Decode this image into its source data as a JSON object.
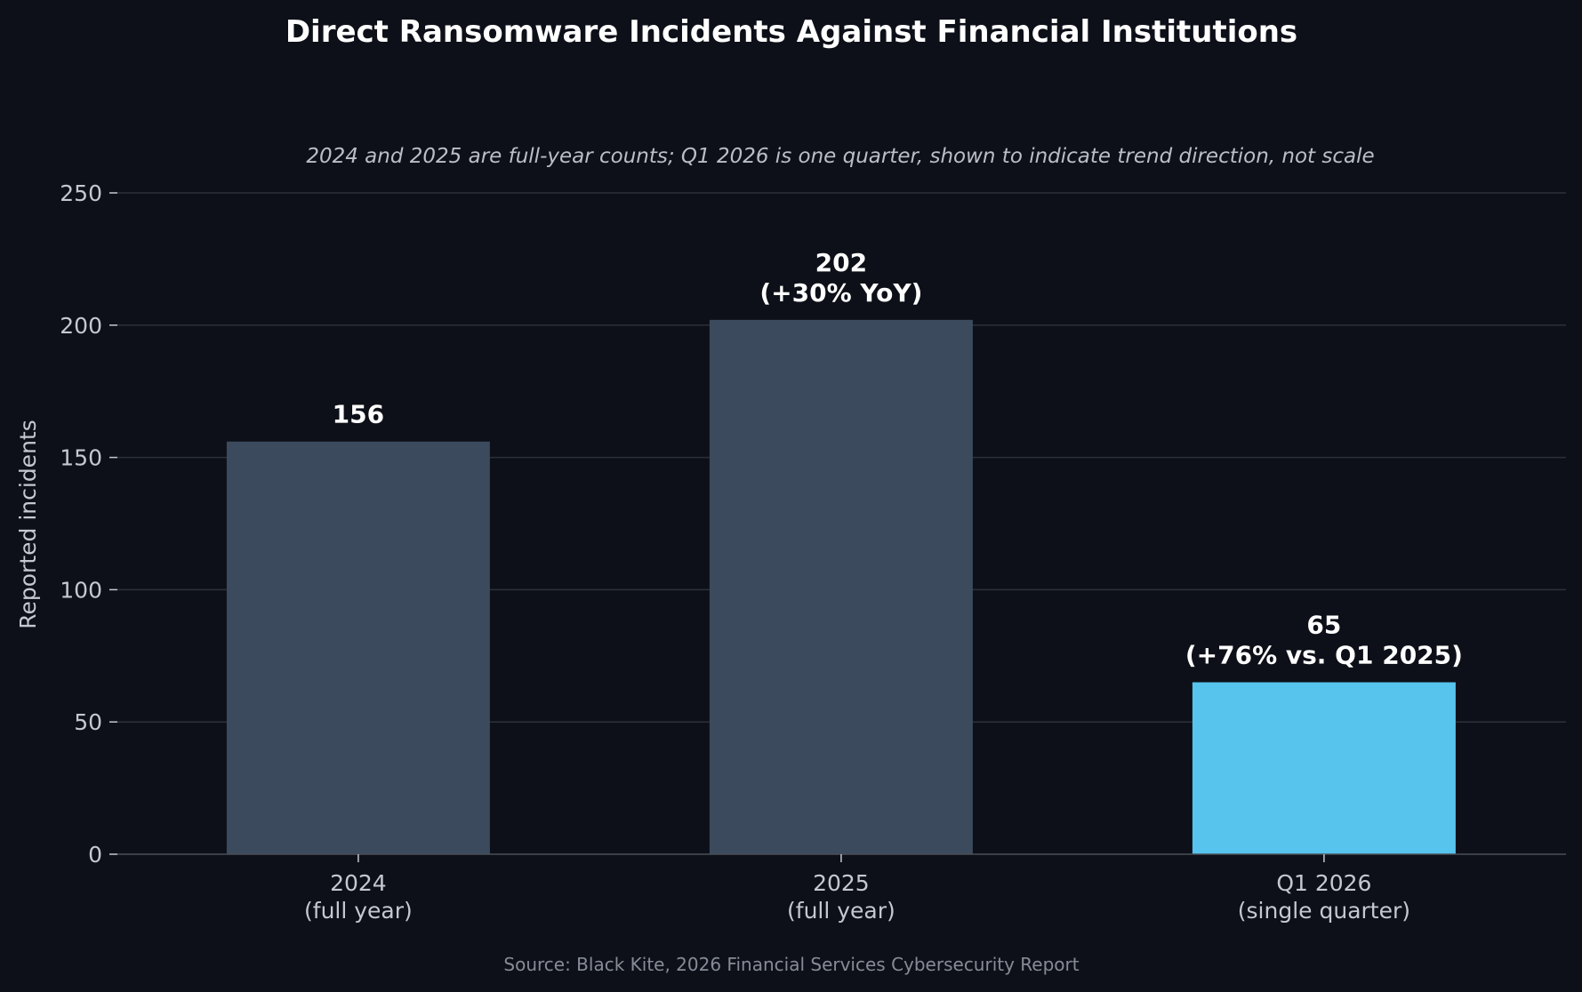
{
  "chart_data": {
    "type": "bar",
    "title": "Direct Ransomware Incidents Against Financial Institutions",
    "subtitle": "2024 and 2025 are full-year counts; Q1 2026 is one quarter, shown to indicate trend direction, not scale",
    "ylabel": "Reported incidents",
    "xlabel": "",
    "ylim": [
      0,
      250
    ],
    "yticks": [
      0,
      50,
      100,
      150,
      200,
      250
    ],
    "grid": true,
    "categories": [
      [
        "2024",
        "(full year)"
      ],
      [
        "2025",
        "(full year)"
      ],
      [
        "Q1 2026",
        "(single quarter)"
      ]
    ],
    "values": [
      156,
      202,
      65
    ],
    "data_labels": [
      [
        "156"
      ],
      [
        "202",
        "(+30% YoY)"
      ],
      [
        "65",
        "(+76% vs. Q1 2025)"
      ]
    ],
    "bar_colors": [
      "#3b4a5c",
      "#3b4a5c",
      "#56c4ed"
    ],
    "source": "Source: Black Kite, 2026 Financial Services Cybersecurity Report"
  },
  "colors": {
    "background": "#0d1018",
    "grid": "#2c3038",
    "axis": "#4a4f58",
    "tick_text": "#c4c8d0"
  }
}
